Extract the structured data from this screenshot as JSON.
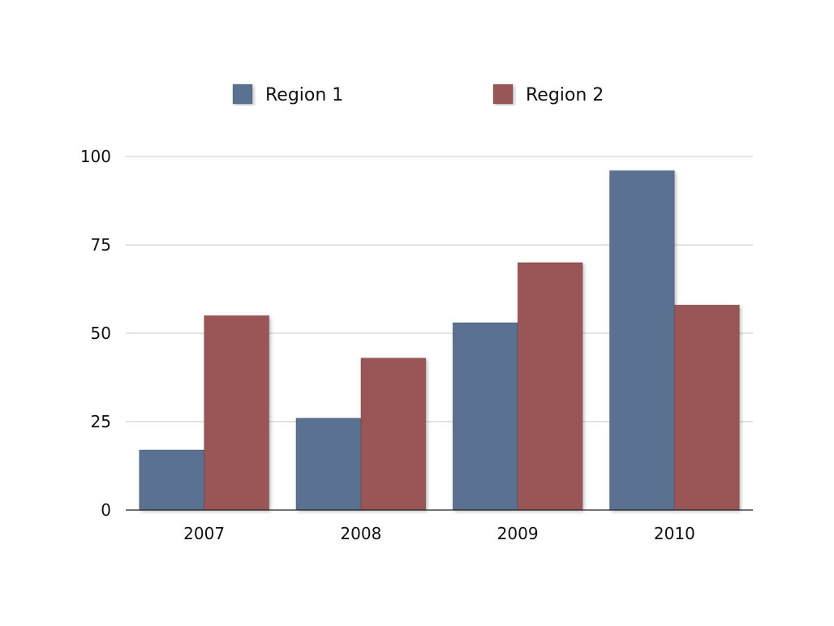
{
  "chart_data": {
    "type": "bar",
    "title": "",
    "xlabel": "",
    "ylabel": "",
    "categories": [
      "2007",
      "2008",
      "2009",
      "2010"
    ],
    "series": [
      {
        "name": "Region 1",
        "values": [
          17,
          26,
          53,
          96
        ],
        "color": "#5a7191"
      },
      {
        "name": "Region 2",
        "values": [
          55,
          43,
          70,
          58
        ],
        "color": "#9a5656"
      }
    ],
    "ylim": [
      0,
      100
    ],
    "yticks": [
      "0",
      "25",
      "50",
      "75",
      "100"
    ],
    "ytick_values": [
      0,
      25,
      50,
      75,
      100
    ],
    "grid": true,
    "legend_position": "top"
  },
  "colors": {
    "gridline": "#c8c8c8",
    "axis": "#222222"
  }
}
